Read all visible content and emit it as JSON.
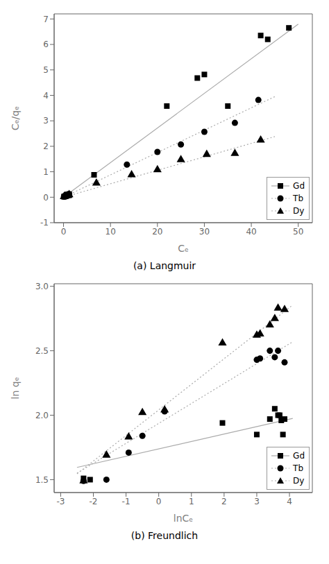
{
  "chart_data": [
    {
      "type": "scatter",
      "title": "(a) Langmuir",
      "xlabel": "Cₑ",
      "ylabel": "Cₑ/qₑ",
      "xlim": [
        -2,
        53
      ],
      "ylim": [
        -1,
        7.2
      ],
      "xticks": [
        0,
        10,
        20,
        30,
        40,
        50
      ],
      "yticks": [
        -1,
        0,
        1,
        2,
        3,
        4,
        5,
        6,
        7
      ],
      "grid": false,
      "legend": "lower right",
      "series": [
        {
          "name": "Gd",
          "type": "scatter",
          "color": "black",
          "marker": "square",
          "x": [
            0.1,
            0.2,
            0.3,
            0.5,
            0.8,
            1.0,
            1.2,
            6.5,
            22.0,
            28.5,
            30.0,
            35.0,
            42.0,
            43.5,
            48.0
          ],
          "values": [
            0.02,
            0.03,
            0.04,
            0.05,
            0.07,
            0.09,
            0.12,
            0.88,
            3.58,
            4.68,
            4.82,
            3.58,
            6.35,
            6.2,
            6.65
          ],
          "fit": {
            "type": "line",
            "color": "#aaaaaa",
            "line_style": "solid",
            "x": [
              0.0,
              50.0
            ],
            "values": [
              0.0,
              6.8
            ]
          }
        },
        {
          "name": "Tb",
          "type": "scatter",
          "color": "black",
          "marker": "circle",
          "x": [
            0.1,
            0.2,
            0.3,
            0.5,
            0.8,
            1.0,
            1.2,
            13.5,
            20.0,
            25.0,
            30.0,
            36.5,
            41.5
          ],
          "values": [
            0.02,
            0.03,
            0.04,
            0.05,
            0.07,
            0.09,
            0.12,
            1.28,
            1.78,
            2.07,
            2.57,
            2.92,
            3.82
          ],
          "fit": {
            "type": "line",
            "color": "#aaaaaa",
            "line_style": "dotted",
            "x": [
              0.0,
              45.0
            ],
            "values": [
              0.0,
              3.95
            ]
          }
        },
        {
          "name": "Dy",
          "type": "scatter",
          "color": "black",
          "marker": "triangle",
          "x": [
            0.1,
            0.2,
            0.3,
            0.5,
            0.8,
            1.0,
            1.2,
            7.0,
            14.5,
            20.0,
            25.0,
            30.5,
            36.5,
            42.0
          ],
          "values": [
            0.02,
            0.03,
            0.04,
            0.05,
            0.06,
            0.07,
            0.1,
            0.55,
            0.88,
            1.08,
            1.47,
            1.68,
            1.72,
            2.24
          ],
          "fit": {
            "type": "line",
            "color": "#aaaaaa",
            "line_style": "dotted",
            "x": [
              0.0,
              45.0
            ],
            "values": [
              0.0,
              2.38
            ]
          }
        }
      ]
    },
    {
      "type": "scatter",
      "title": "(b) Freundlich",
      "xlabel": "lnCₑ",
      "ylabel": "ln qₑ",
      "xlim": [
        -3.2,
        4.7
      ],
      "ylim": [
        1.4,
        3.02
      ],
      "xticks": [
        -3,
        -2,
        -1,
        0,
        1,
        2,
        3,
        4
      ],
      "yticks": [
        1.5,
        {
          "value": 2,
          "label": "2.0"
        },
        2.5,
        {
          "value": 3,
          "label": "3.0"
        }
      ],
      "grid": false,
      "legend": "lower right",
      "series": [
        {
          "name": "Gd",
          "type": "scatter",
          "color": "black",
          "marker": "square",
          "x": [
            -2.3,
            -2.1,
            1.95,
            3.0,
            3.4,
            3.55,
            3.65,
            3.7,
            3.75,
            3.8,
            3.85
          ],
          "values": [
            1.51,
            1.5,
            1.94,
            1.85,
            1.97,
            2.05,
            2.0,
            2.0,
            1.96,
            1.85,
            1.97
          ],
          "fit": {
            "type": "line",
            "color": "#aaaaaa",
            "line_style": "solid",
            "x": [
              -2.5,
              4.1
            ],
            "values": [
              1.595,
              1.975
            ]
          }
        },
        {
          "name": "Tb",
          "type": "scatter",
          "color": "black",
          "marker": "circle",
          "x": [
            -2.3,
            -1.6,
            -0.92,
            -0.5,
            0.18,
            3.0,
            3.1,
            3.4,
            3.55,
            3.65,
            3.85
          ],
          "values": [
            1.49,
            1.5,
            1.71,
            1.84,
            2.03,
            2.43,
            2.44,
            2.5,
            2.45,
            2.5,
            2.41
          ],
          "fit": {
            "type": "line",
            "color": "#aaaaaa",
            "line_style": "dotted",
            "x": [
              -2.5,
              4.1
            ],
            "values": [
              1.55,
              2.57
            ]
          }
        },
        {
          "name": "Dy",
          "type": "scatter",
          "color": "black",
          "marker": "triangle",
          "x": [
            -2.3,
            -1.6,
            -0.92,
            -0.5,
            0.18,
            1.95,
            3.0,
            3.1,
            3.4,
            3.55,
            3.65,
            3.85
          ],
          "values": [
            1.49,
            1.69,
            1.83,
            2.02,
            2.04,
            2.56,
            2.62,
            2.63,
            2.7,
            2.75,
            2.83,
            2.82
          ],
          "fit": {
            "type": "line",
            "color": "#aaaaaa",
            "line_style": "dotted",
            "x": [
              -2.5,
              4.1
            ],
            "values": [
              1.545,
              2.855
            ]
          }
        }
      ]
    }
  ]
}
